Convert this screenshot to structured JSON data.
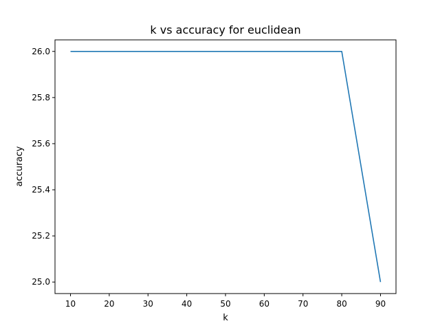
{
  "chart_data": {
    "type": "line",
    "title": "k vs accuracy for euclidean",
    "xlabel": "k",
    "ylabel": "accuracy",
    "x": [
      10,
      20,
      30,
      40,
      50,
      60,
      70,
      80,
      90
    ],
    "series": [
      {
        "values": [
          26.0,
          26.0,
          26.0,
          26.0,
          26.0,
          26.0,
          26.0,
          26.0,
          25.0
        ],
        "color": "#1f77b4"
      }
    ],
    "xlim": [
      6,
      94
    ],
    "ylim": [
      24.95,
      26.05
    ],
    "xticks": [
      10,
      20,
      30,
      40,
      50,
      60,
      70,
      80,
      90
    ],
    "yticks": [
      25.0,
      25.2,
      25.4,
      25.6,
      25.8,
      26.0
    ],
    "ytick_labels": [
      "25.0",
      "25.2",
      "25.4",
      "25.6",
      "25.8",
      "26.0"
    ],
    "grid": false,
    "legend": "none"
  }
}
